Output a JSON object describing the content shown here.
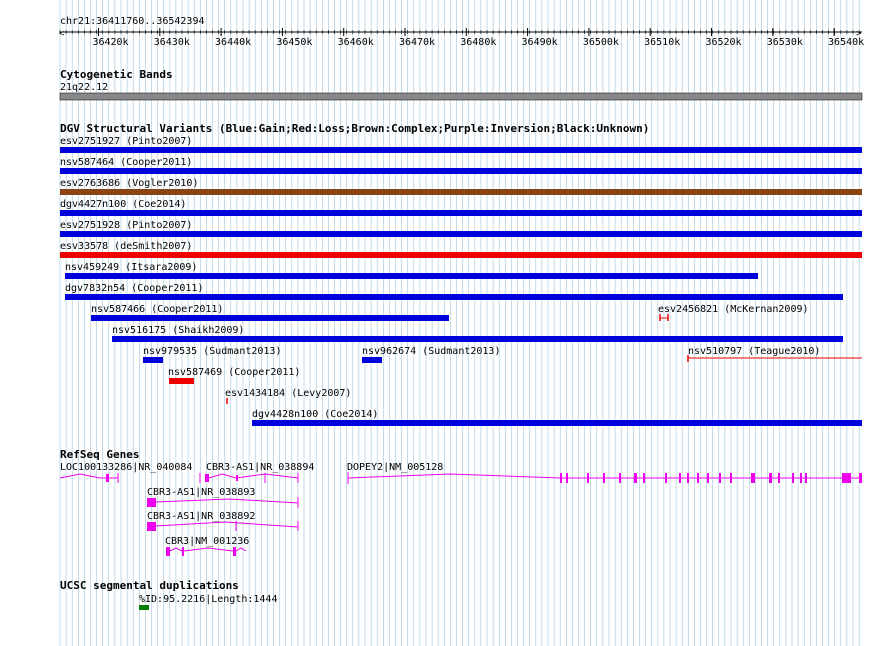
{
  "ruler": {
    "label": "chr21:36411760..36542394",
    "ticks": [
      "36420k",
      "36430k",
      "36440k",
      "36450k",
      "36460k",
      "36470k",
      "36480k",
      "36490k",
      "36500k",
      "36510k",
      "36520k",
      "36530k",
      "36540k"
    ]
  },
  "cytobands": {
    "title": "Cytogenetic Bands",
    "band": "21q22.12"
  },
  "dgv": {
    "title": "DGV Structural Variants (Blue:Gain;Red:Loss;Brown:Complex;Purple:Inversion;Black:Unknown)",
    "variants": [
      {
        "name": "esv2751927 (Pinto2007)",
        "type": "gain"
      },
      {
        "name": "nsv587464 (Cooper2011)",
        "type": "gain"
      },
      {
        "name": "esv2763686 (Vogler2010)",
        "type": "complex"
      },
      {
        "name": "dgv4427n100 (Coe2014)",
        "type": "gain"
      },
      {
        "name": "esv2751928 (Pinto2007)",
        "type": "gain"
      },
      {
        "name": "esv33578 (deSmith2007)",
        "type": "loss"
      },
      {
        "name": "nsv459249 (Itsara2009)",
        "type": "gain"
      },
      {
        "name": "dgv7832n54 (Cooper2011)",
        "type": "gain"
      },
      {
        "name": "nsv587466 (Cooper2011)",
        "type": "gain"
      },
      {
        "name": "esv2456821 (McKernan2009)",
        "type": "loss"
      },
      {
        "name": "nsv516175 (Shaikh2009)",
        "type": "gain"
      },
      {
        "name": "nsv979535 (Sudmant2013)",
        "type": "gain"
      },
      {
        "name": "nsv962674 (Sudmant2013)",
        "type": "gain"
      },
      {
        "name": "nsv510797 (Teague2010)",
        "type": "loss"
      },
      {
        "name": "nsv587469 (Cooper2011)",
        "type": "loss"
      },
      {
        "name": "esv1434184 (Levy2007)",
        "type": "loss"
      },
      {
        "name": "dgv4428n100 (Coe2014)",
        "type": "gain"
      }
    ]
  },
  "refseq": {
    "title": "RefSeq Genes",
    "genes": [
      {
        "name": "LOC100133286|NR_040084"
      },
      {
        "name": "CBR3-AS1|NR_038894"
      },
      {
        "name": "DOPEY2|NM_005128"
      },
      {
        "name": "CBR3-AS1|NR_038893"
      },
      {
        "name": "CBR3-AS1|NR_038892"
      },
      {
        "name": "CBR3|NM_001236"
      }
    ]
  },
  "segdup": {
    "title": "UCSC segmental duplications",
    "label": "%ID:95.2216|Length:1444"
  },
  "colors": {
    "grid": "#9fc5dd",
    "gain": "#0000dd",
    "loss": "#ee0000",
    "complex": "#8b4513",
    "gene": "#ee00ee",
    "segdup": "#008000",
    "band": "#888888",
    "text": "#000000"
  }
}
